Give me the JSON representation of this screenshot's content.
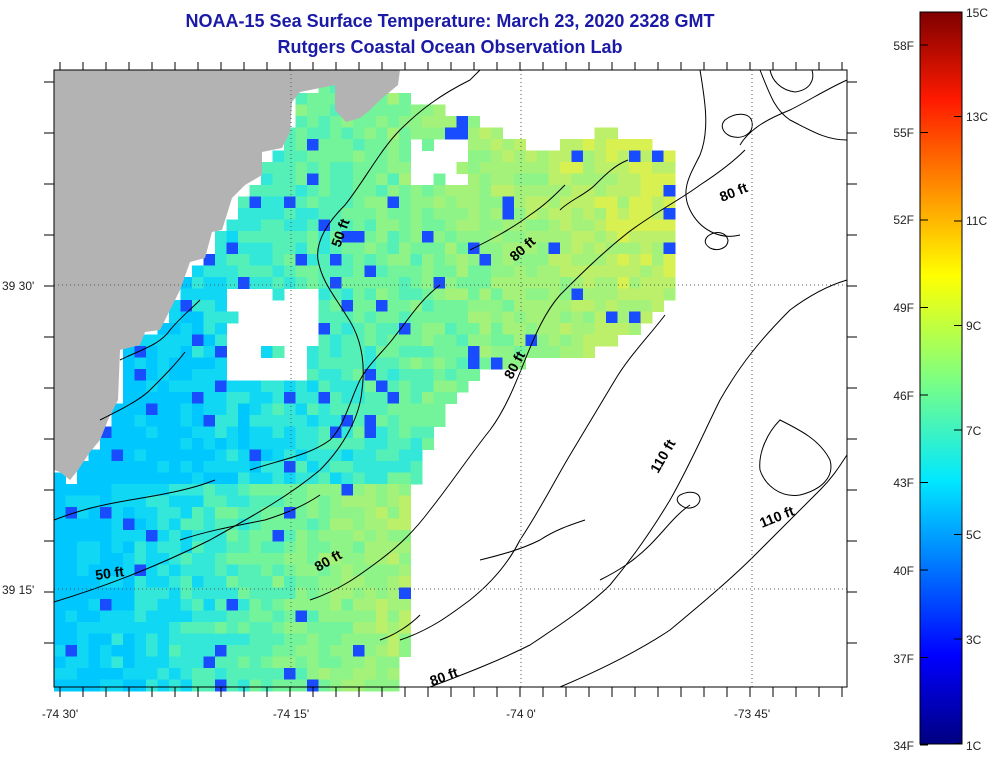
{
  "title": {
    "line1": "NOAA-15 Sea Surface Temperature:  March 23, 2020 2328 GMT",
    "line2": "Rutgers Coastal Ocean Observation Lab"
  },
  "map": {
    "x_ticks": [
      "-74 30'",
      "-74 15'",
      "-74 0'",
      "-73 45'"
    ],
    "y_ticks": [
      "39 30'",
      "39 15'"
    ],
    "contour_labels": [
      "50 ft",
      "80 ft",
      "80 ft",
      "80 ft",
      "50 ft",
      "80 ft",
      "80 ft",
      "110 ft",
      "110 ft"
    ],
    "colors": {
      "land": "#b3b3b3",
      "ocean_nodata": "#ffffff",
      "contour": "#000000"
    }
  },
  "colorbar": {
    "fahrenheit_labels": [
      "58F",
      "55F",
      "52F",
      "49F",
      "46F",
      "43F",
      "40F",
      "37F",
      "34F"
    ],
    "celsius_labels": [
      "15C",
      "13C",
      "11C",
      "9C",
      "7C",
      "5C",
      "3C",
      "1C"
    ],
    "scale": "jet",
    "range_c": [
      1,
      15
    ]
  }
}
